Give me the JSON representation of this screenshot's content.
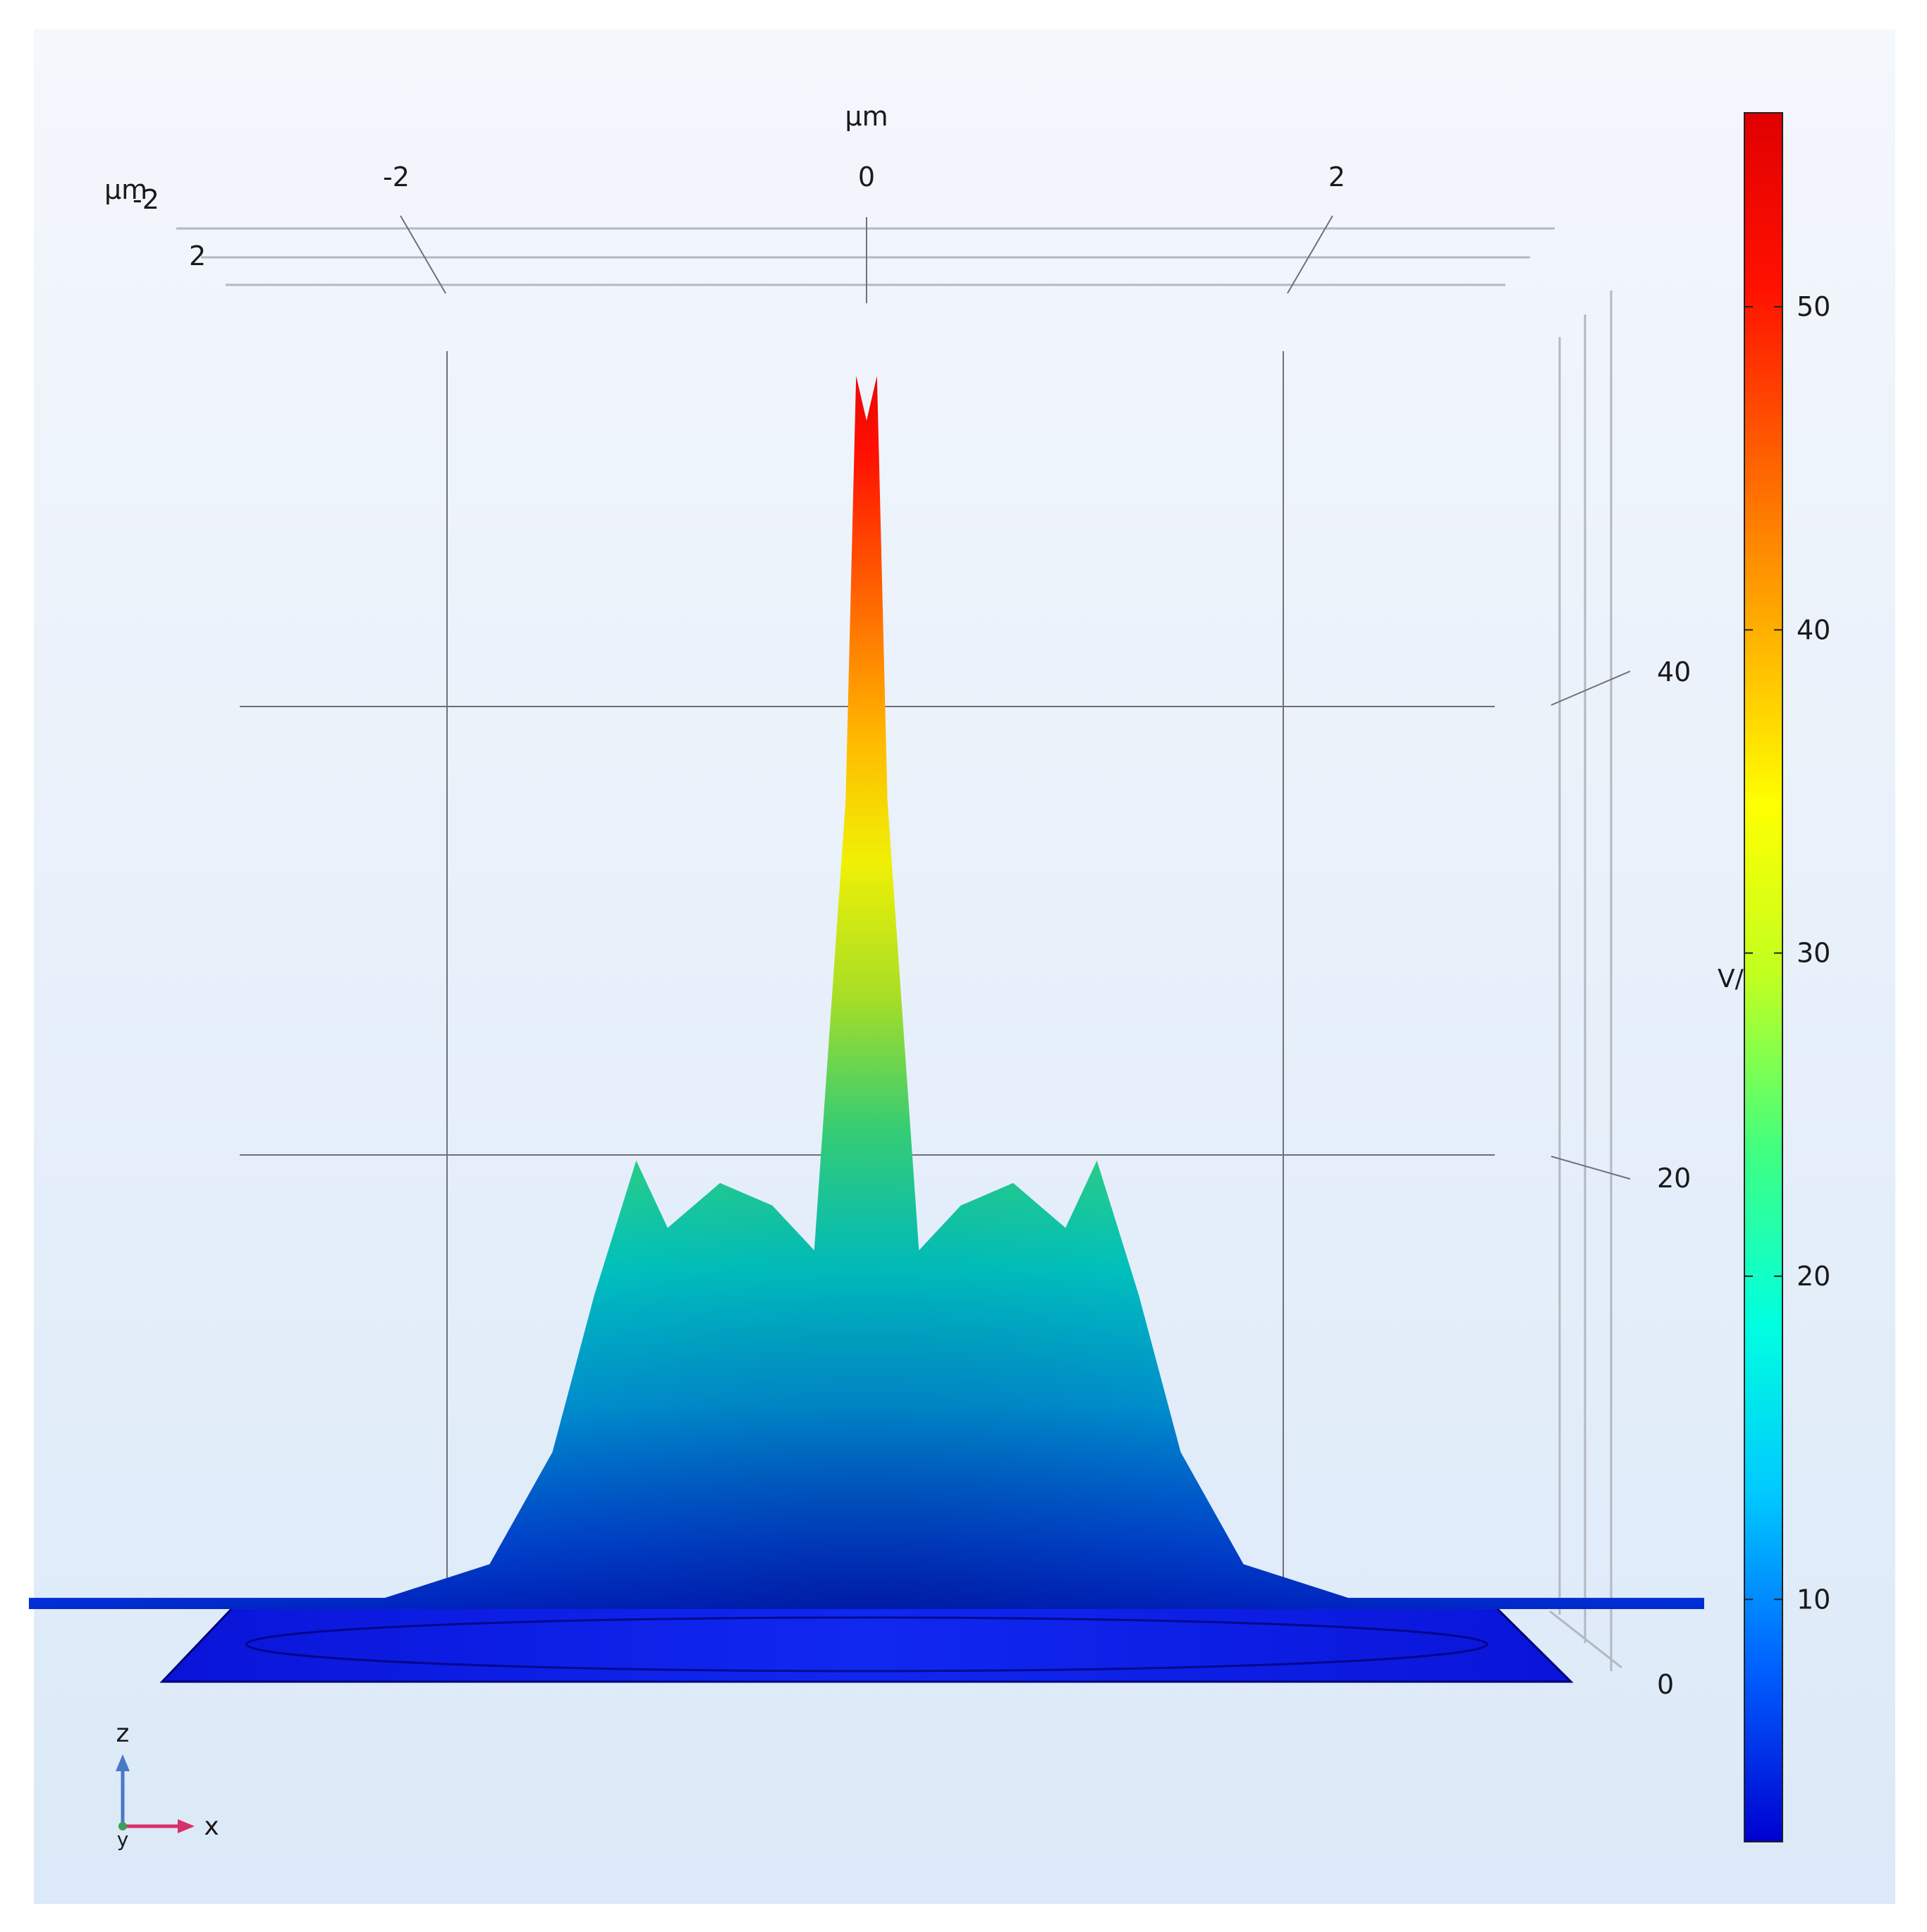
{
  "chart_data": {
    "type": "surface",
    "axes": {
      "x_unit": "μm",
      "y_unit": "μm",
      "y_axis_label": "μm",
      "x_ticks": [
        "-2",
        "0",
        "2"
      ],
      "x_tick_values": [
        -2,
        0,
        2
      ],
      "y_ticks": [
        "-2",
        "2"
      ],
      "z_ticks": [
        "0",
        "20",
        "40"
      ],
      "z_tick_values": [
        0,
        20,
        40
      ],
      "xlim": [
        -4,
        4
      ],
      "zlim": [
        0,
        56
      ]
    },
    "colorbar": {
      "label": "V/",
      "ticks": [
        "10",
        "20",
        "30",
        "40",
        "50"
      ],
      "tick_values": [
        10,
        20,
        30,
        40,
        50
      ],
      "range": [
        2.5,
        56
      ],
      "colormap": [
        "#0000d0",
        "#0060ff",
        "#00c8ff",
        "#00ffe0",
        "#40ff80",
        "#c0ff20",
        "#ffff00",
        "#ffb000",
        "#ff6000",
        "#ff1000",
        "#e00000"
      ]
    },
    "profile": {
      "x": [
        -4.0,
        -2.3,
        -1.8,
        -1.5,
        -1.3,
        -1.1,
        -0.95,
        -0.7,
        -0.45,
        -0.25,
        -0.1,
        -0.05,
        0.0,
        0.05,
        0.1,
        0.25,
        0.45,
        0.7,
        0.95,
        1.1,
        1.3,
        1.5,
        1.8,
        2.3,
        4.0
      ],
      "z": [
        0.5,
        0.5,
        2,
        7,
        14,
        20,
        17,
        19,
        18,
        16,
        36,
        55,
        53,
        55,
        36,
        16,
        18,
        19,
        17,
        20,
        14,
        7,
        2,
        0.5,
        0.5
      ]
    },
    "triad": {
      "z": "z",
      "x": "x",
      "y": "y"
    },
    "grid": true
  }
}
